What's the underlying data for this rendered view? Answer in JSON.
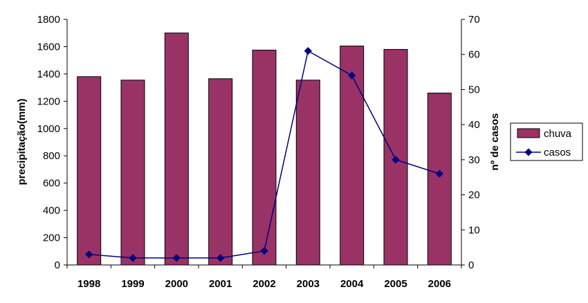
{
  "chart_data": {
    "type": "bar",
    "categories": [
      "1998",
      "1999",
      "2000",
      "2001",
      "2002",
      "2003",
      "2004",
      "2005",
      "2006"
    ],
    "series": [
      {
        "name": "chuva",
        "type": "bar",
        "axis": "left",
        "color": "#993366",
        "values": [
          1380,
          1355,
          1700,
          1365,
          1575,
          1355,
          1605,
          1580,
          1260
        ]
      },
      {
        "name": "casos",
        "type": "line",
        "axis": "right",
        "color": "#000080",
        "marker": "diamond",
        "values": [
          3,
          2,
          2,
          2,
          4,
          61,
          54,
          30,
          26
        ]
      }
    ],
    "title": "",
    "xlabel": "",
    "ylabel": "precipitação(mm)",
    "y2label": "nº de casos",
    "ylim": [
      0,
      1800
    ],
    "y2lim": [
      0,
      70
    ],
    "yticks": [
      0,
      200,
      400,
      600,
      800,
      1000,
      1200,
      1400,
      1600,
      1800
    ],
    "y2ticks": [
      0,
      10,
      20,
      30,
      40,
      50,
      60,
      70
    ],
    "grid": false,
    "legend_position": "right"
  }
}
